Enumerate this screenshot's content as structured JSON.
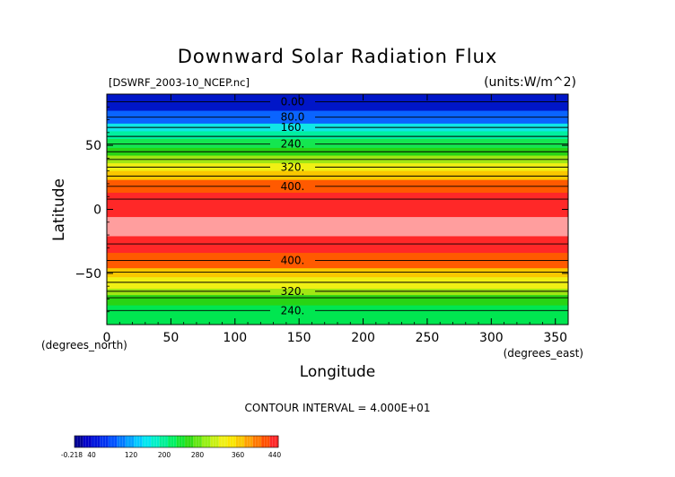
{
  "chart_data": {
    "type": "heatmap",
    "title": "Downward Solar Radiation Flux",
    "source_label": "[DSWRF_2003-10_NCEP.nc]",
    "units_label": "(units:W/m^2)",
    "xlabel": "Longitude",
    "ylabel": "Latitude",
    "x_unit_label": "(degrees_east)",
    "y_unit_label": "(degrees_north)",
    "xlim": [
      0,
      360
    ],
    "ylim": [
      -90,
      90
    ],
    "x_ticks": [
      0,
      50,
      100,
      150,
      200,
      250,
      300,
      350
    ],
    "y_ticks": [
      50,
      0,
      -50
    ],
    "contour_interval_text": "CONTOUR INTERVAL = 4.000E+01",
    "latitude_bands": [
      {
        "lat_min": 77,
        "lat_max": 90,
        "value": 10,
        "color": "#0016c8"
      },
      {
        "lat_min": 67,
        "lat_max": 77,
        "value": 80,
        "color": "#0a64ff"
      },
      {
        "lat_min": 61,
        "lat_max": 67,
        "value": 140,
        "color": "#10e6e6"
      },
      {
        "lat_min": 55,
        "lat_max": 61,
        "value": 180,
        "color": "#00f0a0"
      },
      {
        "lat_min": 48,
        "lat_max": 55,
        "value": 210,
        "color": "#14e650"
      },
      {
        "lat_min": 42,
        "lat_max": 48,
        "value": 240,
        "color": "#28d414"
      },
      {
        "lat_min": 36,
        "lat_max": 42,
        "value": 280,
        "color": "#a0e614"
      },
      {
        "lat_min": 30,
        "lat_max": 36,
        "value": 310,
        "color": "#f0f014"
      },
      {
        "lat_min": 23,
        "lat_max": 30,
        "value": 340,
        "color": "#fac800"
      },
      {
        "lat_min": 13,
        "lat_max": 23,
        "value": 370,
        "color": "#ff5a00"
      },
      {
        "lat_min": -6,
        "lat_max": 13,
        "value": 410,
        "color": "#ff2828"
      },
      {
        "lat_min": -21,
        "lat_max": -6,
        "value": 445,
        "color": "#ff9e9e"
      },
      {
        "lat_min": -34,
        "lat_max": -21,
        "value": 410,
        "color": "#ff2828"
      },
      {
        "lat_min": -46,
        "lat_max": -34,
        "value": 370,
        "color": "#ff5a00"
      },
      {
        "lat_min": -53,
        "lat_max": -46,
        "value": 340,
        "color": "#fac800"
      },
      {
        "lat_min": -62,
        "lat_max": -53,
        "value": 300,
        "color": "#f0f014"
      },
      {
        "lat_min": -67,
        "lat_max": -62,
        "value": 270,
        "color": "#a0e614"
      },
      {
        "lat_min": -75,
        "lat_max": -67,
        "value": 240,
        "color": "#28d414"
      },
      {
        "lat_min": -90,
        "lat_max": -75,
        "value": 210,
        "color": "#00e650"
      }
    ],
    "contour_lines": [
      {
        "lat": 84,
        "label": "0.00"
      },
      {
        "lat": 72,
        "label": "80.0"
      },
      {
        "lat": 64,
        "label": "160."
      },
      {
        "lat": 57
      },
      {
        "lat": 51,
        "label": "240."
      },
      {
        "lat": 45
      },
      {
        "lat": 39
      },
      {
        "lat": 33,
        "label": "320."
      },
      {
        "lat": 26
      },
      {
        "lat": 18,
        "label": "400."
      },
      {
        "lat": 8
      },
      {
        "lat": -27
      },
      {
        "lat": -40,
        "label": "400."
      },
      {
        "lat": -49
      },
      {
        "lat": -57
      },
      {
        "lat": -64,
        "label": "320."
      },
      {
        "lat": -69
      },
      {
        "lat": -79,
        "label": "240."
      }
    ],
    "colorbar": {
      "labels": [
        "-0.218",
        "40",
        "120",
        "200",
        "280",
        "360",
        "440"
      ],
      "colors": [
        "#000096",
        "#0000c8",
        "#0014dc",
        "#0032f0",
        "#0050ff",
        "#0078ff",
        "#00a0ff",
        "#00c8ff",
        "#00e6f0",
        "#00f0c8",
        "#00f096",
        "#00f064",
        "#14e632",
        "#32dc14",
        "#64e614",
        "#96f014",
        "#c8f014",
        "#f0f014",
        "#fae600",
        "#fac800",
        "#ffa000",
        "#ff7800",
        "#ff5000",
        "#ff2828"
      ]
    }
  }
}
